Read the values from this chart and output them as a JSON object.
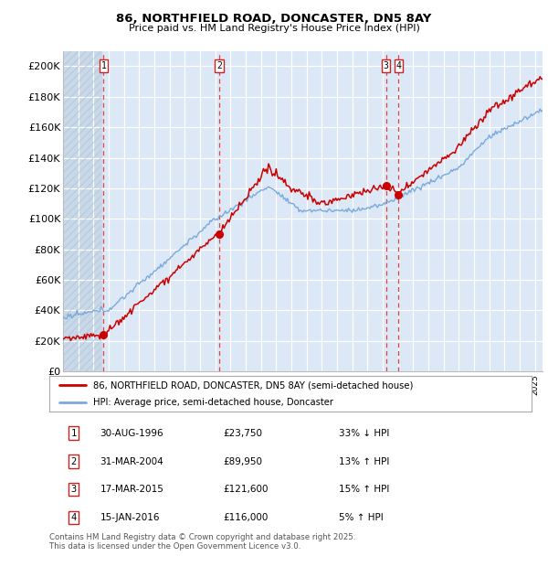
{
  "title_line1": "86, NORTHFIELD ROAD, DONCASTER, DN5 8AY",
  "title_line2": "Price paid vs. HM Land Registry's House Price Index (HPI)",
  "transactions": [
    {
      "num": 1,
      "date_label": "30-AUG-1996",
      "year": 1996.66,
      "price": 23750,
      "pct": "33%",
      "dir": "↓"
    },
    {
      "num": 2,
      "date_label": "31-MAR-2004",
      "year": 2004.25,
      "price": 89950,
      "pct": "13%",
      "dir": "↑"
    },
    {
      "num": 3,
      "date_label": "17-MAR-2015",
      "year": 2015.21,
      "price": 121600,
      "pct": "15%",
      "dir": "↑"
    },
    {
      "num": 4,
      "date_label": "15-JAN-2016",
      "year": 2016.04,
      "price": 116000,
      "pct": "5%",
      "dir": "↑"
    }
  ],
  "legend_label_red": "86, NORTHFIELD ROAD, DONCASTER, DN5 8AY (semi-detached house)",
  "legend_label_blue": "HPI: Average price, semi-detached house, Doncaster",
  "footer": "Contains HM Land Registry data © Crown copyright and database right 2025.\nThis data is licensed under the Open Government Licence v3.0.",
  "table_rows": [
    [
      "1",
      "30-AUG-1996",
      "£23,750",
      "33% ↓ HPI"
    ],
    [
      "2",
      "31-MAR-2004",
      "£89,950",
      "13% ↑ HPI"
    ],
    [
      "3",
      "17-MAR-2015",
      "£121,600",
      "15% ↑ HPI"
    ],
    [
      "4",
      "15-JAN-2016",
      "£116,000",
      "5% ↑ HPI"
    ]
  ],
  "xmin": 1994,
  "xmax": 2025.5,
  "ymin": 0,
  "ymax": 210000,
  "yticks": [
    0,
    20000,
    40000,
    60000,
    80000,
    100000,
    120000,
    140000,
    160000,
    180000,
    200000
  ],
  "ytick_labels": [
    "£0",
    "£20K",
    "£40K",
    "£60K",
    "£80K",
    "£100K",
    "£120K",
    "£140K",
    "£160K",
    "£180K",
    "£200K"
  ],
  "red_color": "#cc0000",
  "blue_color": "#7aaadd",
  "vline_color": "#dd4444",
  "plot_bg": "#ffffff",
  "shade_color": "#dce8f5",
  "hatch_color": "#c8d8e8",
  "grid_color": "#cccccc"
}
